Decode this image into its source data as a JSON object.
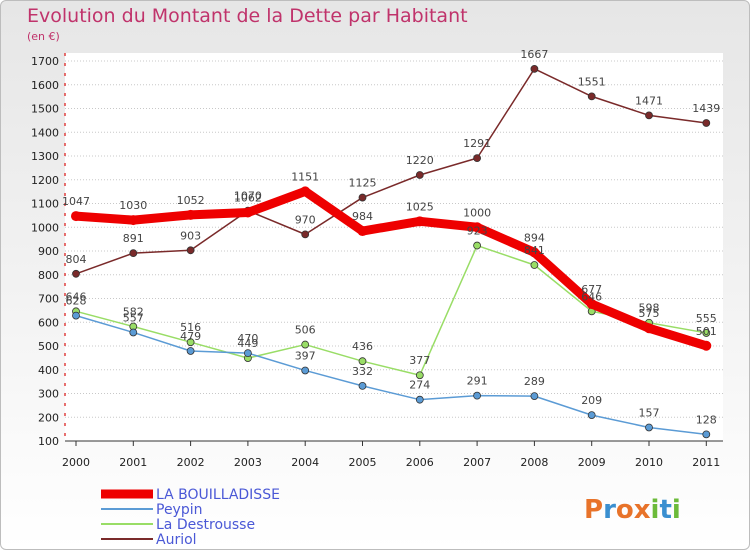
{
  "header": {
    "title": "Evolution du Montant de la Dette par Habitant",
    "subtitle": "(en €)"
  },
  "logo": {
    "text": "Proxiti",
    "letters": [
      "P",
      "r",
      "o",
      "x",
      "i",
      "t",
      "i"
    ],
    "colors": [
      "#e8732a",
      "#3a8fd0",
      "#e8732a",
      "#e8732a",
      "#6cbb3a",
      "#3a8fd0",
      "#6cbb3a"
    ]
  },
  "chart_data": {
    "type": "line",
    "title": "Evolution du Montant de la Dette par Habitant",
    "subtitle": "(en €)",
    "xlabel": "",
    "ylabel": "",
    "ylim": [
      100,
      1700
    ],
    "yticks": [
      100,
      200,
      300,
      400,
      500,
      600,
      700,
      800,
      900,
      1000,
      1100,
      1200,
      1300,
      1400,
      1500,
      1600,
      1700
    ],
    "categories": [
      "2000",
      "2001",
      "2002",
      "2003",
      "2004",
      "2005",
      "2006",
      "2007",
      "2008",
      "2009",
      "2010",
      "2011"
    ],
    "grid": "horizontal",
    "legend": "bottom-left",
    "series": [
      {
        "name": "LA BOUILLADISSE",
        "color": "#ee0000",
        "values": [
          1047,
          1030,
          1052,
          1062,
          1151,
          984,
          1025,
          1000,
          894,
          677,
          575,
          501
        ]
      },
      {
        "name": "Peypin",
        "color": "#5b9bd5",
        "values": [
          628,
          557,
          479,
          470,
          397,
          332,
          274,
          291,
          289,
          209,
          157,
          128
        ]
      },
      {
        "name": "La Destrousse",
        "color": "#99dd66",
        "values": [
          646,
          582,
          516,
          449,
          506,
          436,
          377,
          923,
          841,
          646,
          598,
          555
        ]
      },
      {
        "name": "Auriol",
        "color": "#7a2a2a",
        "values": [
          804,
          891,
          903,
          1070,
          970,
          1125,
          1220,
          1291,
          1667,
          1551,
          1471,
          1439
        ]
      }
    ]
  }
}
